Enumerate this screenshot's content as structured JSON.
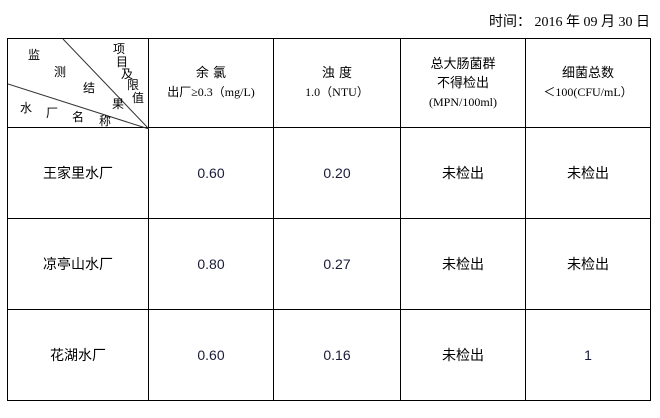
{
  "date_text": "时间： 2016 年 09 月 30 日",
  "corner": {
    "c1": "监",
    "c2": "测",
    "c3": "结",
    "c4": "果",
    "i1": "项",
    "i2": "目",
    "i3": "及",
    "i4": "限",
    "i5": "值",
    "n1": "水",
    "n2": "厂",
    "n3": "名",
    "n4": "称"
  },
  "headers": [
    {
      "l1": "余 氯",
      "l2": "出厂≥0.3（mg/L)"
    },
    {
      "l1": "浊 度",
      "l2": "1.0（NTU）"
    },
    {
      "l1": "总大肠菌群",
      "l2": "不得检出",
      "l3": "(MPN/100ml)"
    },
    {
      "l1": "细菌总数",
      "l2": "＜100(CFU/mL）"
    }
  ],
  "rows": [
    {
      "name": "王家里水厂",
      "v": [
        "0.60",
        "0.20",
        "未检出",
        "未检出"
      ]
    },
    {
      "name": "凉亭山水厂",
      "v": [
        "0.80",
        "0.27",
        "未检出",
        "未检出"
      ]
    },
    {
      "name": "花湖水厂",
      "v": [
        "0.60",
        "0.16",
        "未检出",
        "1"
      ]
    }
  ]
}
